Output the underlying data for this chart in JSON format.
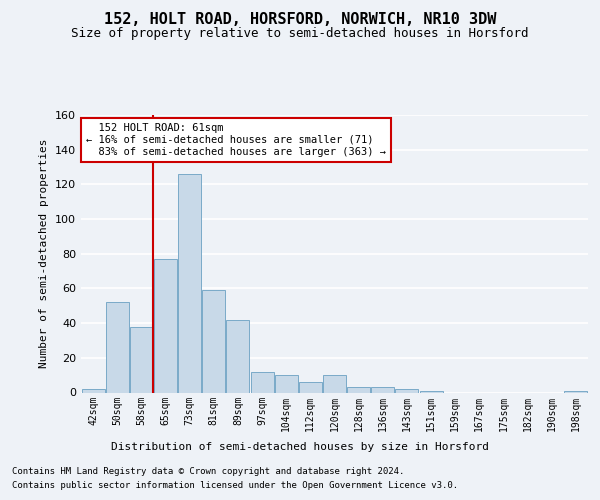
{
  "title": "152, HOLT ROAD, HORSFORD, NORWICH, NR10 3DW",
  "subtitle": "Size of property relative to semi-detached houses in Horsford",
  "xlabel": "Distribution of semi-detached houses by size in Horsford",
  "ylabel": "Number of semi-detached properties",
  "footer1": "Contains HM Land Registry data © Crown copyright and database right 2024.",
  "footer2": "Contains public sector information licensed under the Open Government Licence v3.0.",
  "categories": [
    "42sqm",
    "50sqm",
    "58sqm",
    "65sqm",
    "73sqm",
    "81sqm",
    "89sqm",
    "97sqm",
    "104sqm",
    "112sqm",
    "120sqm",
    "128sqm",
    "136sqm",
    "143sqm",
    "151sqm",
    "159sqm",
    "167sqm",
    "175sqm",
    "182sqm",
    "190sqm",
    "198sqm"
  ],
  "values": [
    2,
    52,
    38,
    77,
    126,
    59,
    42,
    12,
    10,
    6,
    10,
    3,
    3,
    2,
    1,
    0,
    0,
    0,
    0,
    0,
    1
  ],
  "bar_color": "#c8d9e8",
  "bar_edge_color": "#7aaac8",
  "marker_label": "152 HOLT ROAD: 61sqm",
  "pct_smaller": 16,
  "pct_larger": 83,
  "count_smaller": 71,
  "count_larger": 363,
  "red_line_x": 2.5,
  "ylim": [
    0,
    160
  ],
  "yticks": [
    0,
    20,
    40,
    60,
    80,
    100,
    120,
    140,
    160
  ],
  "background_color": "#eef2f7",
  "plot_bg_color": "#eef2f7",
  "annotation_box_color": "#ffffff",
  "annotation_box_edge": "#cc0000",
  "red_line_color": "#cc0000",
  "grid_color": "#ffffff",
  "title_fontsize": 11,
  "subtitle_fontsize": 9,
  "ylabel_fontsize": 8,
  "xlabel_fontsize": 8,
  "tick_fontsize": 7,
  "ann_fontsize": 7.5,
  "footer_fontsize": 6.5
}
